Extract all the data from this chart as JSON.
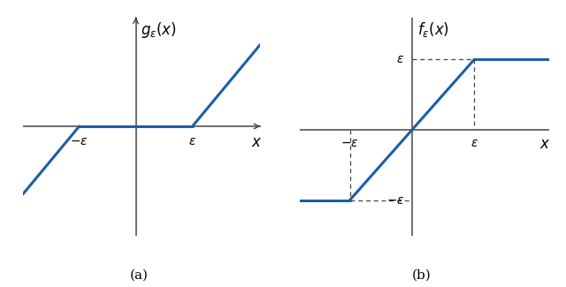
{
  "epsilon": 1.0,
  "line_color": "#1a5fa8",
  "line_width": 2.2,
  "axis_color": "#444444",
  "dashed_color": "#444444",
  "label_a": "(a)",
  "label_b": "(b)",
  "title_a": "$g_{\\epsilon}(x)$",
  "title_b": "$f_{\\epsilon}(x)$",
  "xlabel": "$x$",
  "background": "#ffffff",
  "left_xlim": [
    -2.0,
    2.2
  ],
  "left_ylim": [
    -1.6,
    1.6
  ],
  "right_xlim": [
    -1.8,
    2.2
  ],
  "right_ylim": [
    -1.5,
    1.6
  ]
}
